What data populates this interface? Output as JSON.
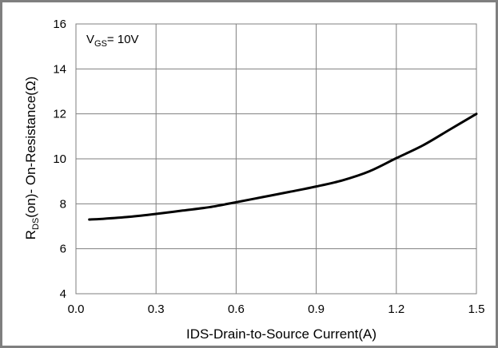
{
  "chart_data": {
    "type": "line",
    "title": "",
    "xlabel": "IDS-Drain-to-Source  Current(A)",
    "ylabel": {
      "main": "R",
      "sub": "DS",
      "rest": "(on)- On-Resistance(Ω)"
    },
    "annotation": {
      "main": "V",
      "sub": "GS",
      "rest": "= 10V"
    },
    "xlim": [
      0.0,
      1.5
    ],
    "ylim": [
      4,
      16
    ],
    "xticks": [
      "0.0",
      "0.3",
      "0.6",
      "0.9",
      "1.2",
      "1.5"
    ],
    "yticks": [
      "4",
      "6",
      "8",
      "10",
      "12",
      "14",
      "16"
    ],
    "grid": true,
    "line_color": "#000000",
    "grid_color": "#7f7f7f",
    "series": [
      {
        "x": [
          0.05,
          0.1,
          0.2,
          0.3,
          0.4,
          0.5,
          0.6,
          0.7,
          0.8,
          0.9,
          1.0,
          1.1,
          1.2,
          1.3,
          1.4,
          1.5
        ],
        "y": [
          7.3,
          7.33,
          7.42,
          7.55,
          7.7,
          7.85,
          8.07,
          8.3,
          8.53,
          8.77,
          9.05,
          9.45,
          10.03,
          10.6,
          11.3,
          12.0
        ]
      }
    ]
  }
}
